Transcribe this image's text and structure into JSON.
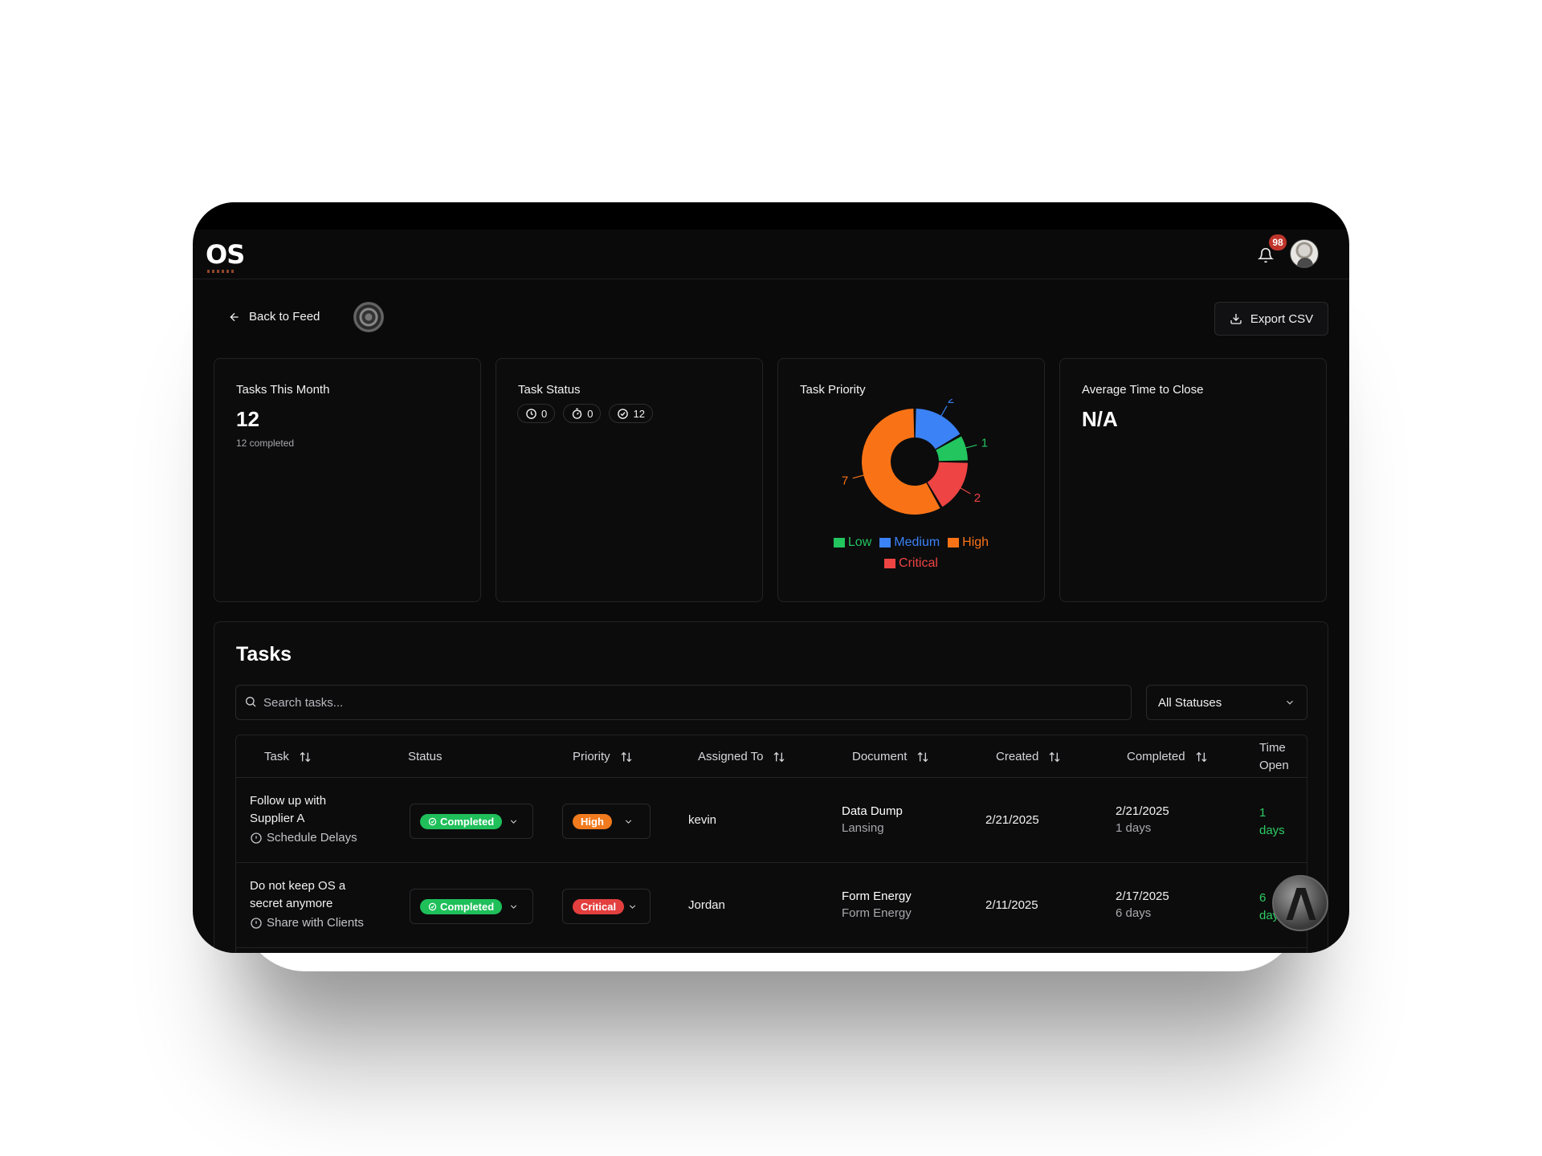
{
  "app": {
    "logo": "OS",
    "notification_count": "98"
  },
  "toolbar": {
    "back_label": "Back to Feed",
    "export_label": "Export CSV"
  },
  "cards": {
    "tasks_month": {
      "title": "Tasks This Month",
      "value": "12",
      "sub": "12 completed"
    },
    "task_status": {
      "title": "Task Status",
      "pills": [
        {
          "icon": "clock-icon",
          "count": "0"
        },
        {
          "icon": "stopwatch-icon",
          "count": "0"
        },
        {
          "icon": "check-circle-icon",
          "count": "12"
        }
      ]
    },
    "task_priority": {
      "title": "Task Priority"
    },
    "avg_time": {
      "title": "Average Time to Close",
      "value": "N/A"
    }
  },
  "chart_data": {
    "type": "pie",
    "title": "Task Priority",
    "donut": true,
    "slices": [
      {
        "name": "Medium",
        "value": 2,
        "color": "#3b82f6",
        "label": "2"
      },
      {
        "name": "Low",
        "value": 1,
        "color": "#22c55e",
        "label": "1"
      },
      {
        "name": "Critical",
        "value": 2,
        "color": "#ef4444",
        "label": "2"
      },
      {
        "name": "High",
        "value": 7,
        "color": "#f97316",
        "label": "7"
      }
    ],
    "legend": [
      "Low",
      "Medium",
      "High",
      "Critical"
    ],
    "legend_placement": "bottom"
  },
  "tasks": {
    "title": "Tasks",
    "search_placeholder": "Search tasks...",
    "filter_value": "All Statuses",
    "columns": {
      "task": "Task",
      "status": "Status",
      "priority": "Priority",
      "assigned": "Assigned To",
      "document": "Document",
      "created": "Created",
      "completed": "Completed",
      "time_open_1": "Time",
      "time_open_2": "Open"
    },
    "rows": [
      {
        "name": "Follow up with Supplier A",
        "sub": "Schedule Delays",
        "status": "Completed",
        "priority": "High",
        "assigned": "kevin",
        "doc_title": "Data Dump",
        "doc_sub": "Lansing",
        "created": "2/21/2025",
        "completed": "2/21/2025",
        "completed_sub": "1 days",
        "time_open_1": "1",
        "time_open_2": "days"
      },
      {
        "name": "Do not keep OS a secret anymore",
        "sub": "Share with Clients",
        "status": "Completed",
        "priority": "Critical",
        "assigned": "Jordan",
        "doc_title": "Form Energy",
        "doc_sub": "Form Energy",
        "created": "2/11/2025",
        "completed": "2/17/2025",
        "completed_sub": "6 days",
        "time_open_1": "6",
        "time_open_2": "days"
      }
    ]
  }
}
